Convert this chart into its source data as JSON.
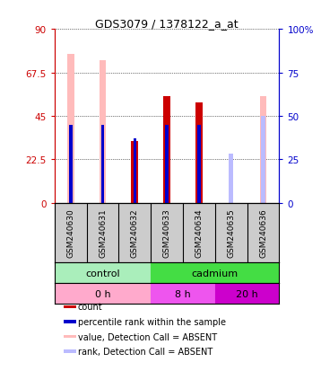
{
  "title": "GDS3079 / 1378122_a_at",
  "samples": [
    "GSM240630",
    "GSM240631",
    "GSM240632",
    "GSM240633",
    "GSM240634",
    "GSM240635",
    "GSM240636"
  ],
  "count_values": [
    null,
    null,
    32,
    55,
    52,
    null,
    null
  ],
  "rank_values": [
    45,
    45,
    37,
    45,
    45,
    null,
    null
  ],
  "value_absent": [
    77,
    74,
    null,
    null,
    null,
    null,
    55
  ],
  "rank_absent": [
    null,
    null,
    null,
    null,
    null,
    28,
    50
  ],
  "ylim_left": [
    0,
    90
  ],
  "ylim_right": [
    0,
    100
  ],
  "yticks_left": [
    0,
    22.5,
    45,
    67.5,
    90
  ],
  "yticks_right": [
    0,
    25,
    50,
    75,
    100
  ],
  "ytick_labels_left": [
    "0",
    "22.5",
    "45",
    "67.5",
    "90"
  ],
  "ytick_labels_right": [
    "0",
    "25",
    "50",
    "75",
    "100%"
  ],
  "agent_groups": [
    {
      "label": "control",
      "start": 0,
      "end": 3,
      "color": "#aaeebb"
    },
    {
      "label": "cadmium",
      "start": 3,
      "end": 7,
      "color": "#44dd44"
    }
  ],
  "time_groups": [
    {
      "label": "0 h",
      "start": 0,
      "end": 3,
      "color": "#ffaacc"
    },
    {
      "label": "8 h",
      "start": 3,
      "end": 5,
      "color": "#ee55ee"
    },
    {
      "label": "20 h",
      "start": 5,
      "end": 7,
      "color": "#cc00cc"
    }
  ],
  "color_count": "#cc0000",
  "color_rank": "#0000cc",
  "color_value_absent": "#ffbbbb",
  "color_rank_absent": "#bbbbff",
  "color_sample_bg": "#cccccc",
  "left_label_color": "#cc0000",
  "right_label_color": "#0000cc",
  "legend": [
    {
      "label": "count",
      "color": "#cc0000"
    },
    {
      "label": "percentile rank within the sample",
      "color": "#0000cc"
    },
    {
      "label": "value, Detection Call = ABSENT",
      "color": "#ffbbbb"
    },
    {
      "label": "rank, Detection Call = ABSENT",
      "color": "#bbbbff"
    }
  ]
}
